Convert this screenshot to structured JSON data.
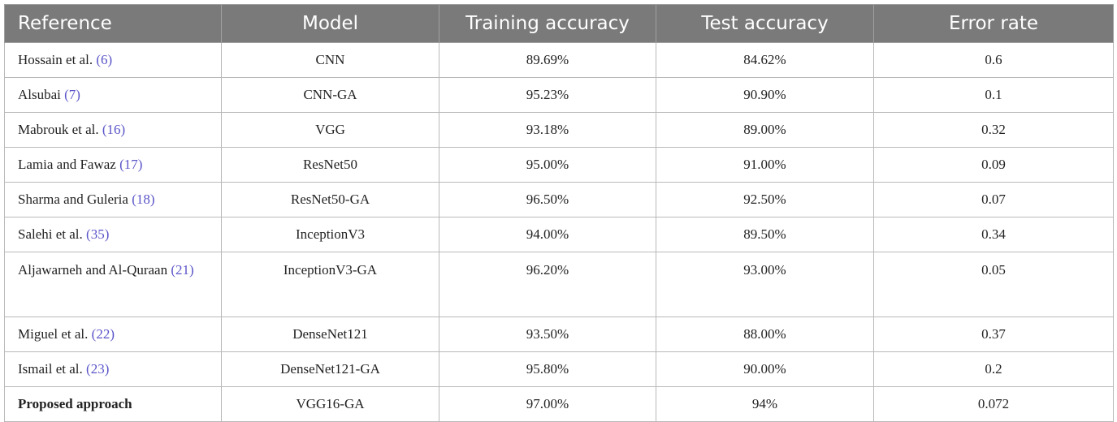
{
  "table": {
    "headers": [
      "Reference",
      "Model",
      "Training accuracy",
      "Test accuracy",
      "Error rate"
    ],
    "rows": [
      {
        "ref": "Hossain et al.",
        "cite": "(6)",
        "model": "CNN",
        "train": "89.69%",
        "test": "84.62%",
        "error": "0.6"
      },
      {
        "ref": "Alsubai",
        "cite": "(7)",
        "model": "CNN-GA",
        "train": "95.23%",
        "test": "90.90%",
        "error": "0.1"
      },
      {
        "ref": "Mabrouk et al.",
        "cite": "(16)",
        "model": "VGG",
        "train": "93.18%",
        "test": "89.00%",
        "error": "0.32"
      },
      {
        "ref": "Lamia and Fawaz",
        "cite": "(17)",
        "model": "ResNet50",
        "train": "95.00%",
        "test": "91.00%",
        "error": "0.09"
      },
      {
        "ref": "Sharma and Guleria",
        "cite": "(18)",
        "model": "ResNet50-GA",
        "train": "96.50%",
        "test": "92.50%",
        "error": "0.07"
      },
      {
        "ref": "Salehi et al.",
        "cite": "(35)",
        "model": "InceptionV3",
        "train": "94.00%",
        "test": "89.50%",
        "error": "0.34"
      },
      {
        "ref": "Aljawarneh and Al-Quraan",
        "cite": "(21)",
        "model": "InceptionV3-GA",
        "train": "96.20%",
        "test": "93.00%",
        "error": "0.05"
      },
      {
        "ref": "Miguel et al.",
        "cite": "(22)",
        "model": "DenseNet121",
        "train": "93.50%",
        "test": "88.00%",
        "error": "0.37"
      },
      {
        "ref": "Ismail et al.",
        "cite": "(23)",
        "model": "DenseNet121-GA",
        "train": "95.80%",
        "test": "90.00%",
        "error": "0.2"
      },
      {
        "ref": "Proposed approach",
        "cite": "",
        "model": "VGG16-GA",
        "train": "97.00%",
        "test": "94%",
        "error": "0.072"
      }
    ]
  }
}
